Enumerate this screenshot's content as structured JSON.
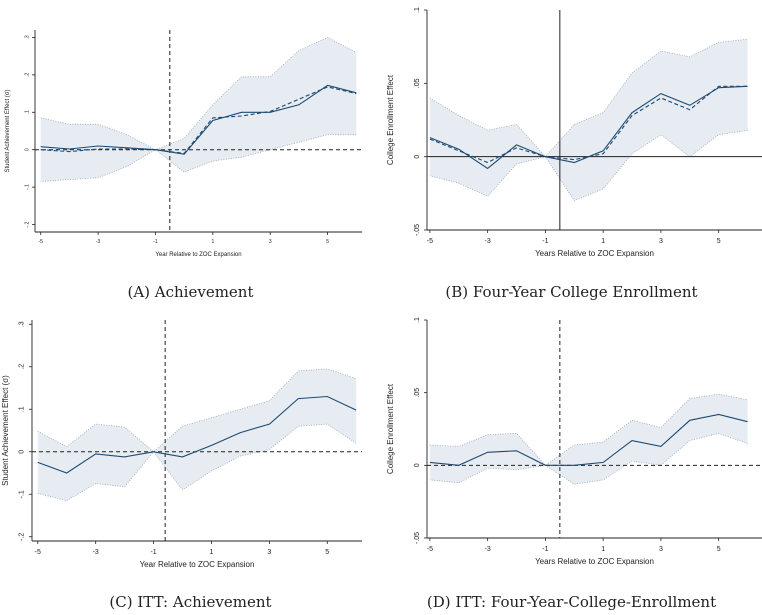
{
  "chart_data": [
    {
      "type": "line",
      "caption": "(A)  Achievement",
      "xlabel": "Year Relative to ZOC Expansion",
      "ylabel": "Student Achievement Effect (σ)",
      "xlim": [
        -5.2,
        6.2
      ],
      "ylim": [
        -0.22,
        0.32
      ],
      "xticks": [
        -5,
        -3,
        -1,
        1,
        3,
        5
      ],
      "yticks": [
        -0.2,
        -0.1,
        0,
        0.1,
        0.2,
        0.3
      ],
      "ytick_labels": [
        "-.2",
        "-.1",
        "0",
        ".1",
        ".2",
        ".3"
      ],
      "tick_font": 5,
      "label_font": 6,
      "x": [
        -5,
        -4,
        -3,
        -2,
        -1,
        0,
        1,
        2,
        3,
        4,
        5,
        6
      ],
      "series": [
        {
          "style": "solid",
          "values": [
            0.008,
            0.002,
            0.01,
            0.005,
            0.0,
            -0.012,
            0.078,
            0.1,
            0.1,
            0.12,
            0.172,
            0.152
          ]
        },
        {
          "style": "dashed",
          "values": [
            0.0,
            -0.005,
            0.002,
            0.002,
            0.0,
            -0.01,
            0.085,
            0.09,
            0.102,
            0.135,
            0.168,
            0.15
          ]
        }
      ],
      "band_lower": [
        -0.085,
        -0.08,
        -0.075,
        -0.045,
        0.0,
        -0.06,
        -0.03,
        -0.02,
        0.0,
        0.02,
        0.04,
        0.04
      ],
      "band_upper": [
        0.085,
        0.068,
        0.068,
        0.04,
        0.0,
        0.03,
        0.12,
        0.195,
        0.195,
        0.265,
        0.3,
        0.26
      ],
      "vline": {
        "x": -0.5,
        "style": "dashed"
      },
      "hline": {
        "y": 0,
        "style": "dashed"
      }
    },
    {
      "type": "line",
      "caption": "(B)  Four-Year College Enrollment",
      "xlabel": "Years Relative to ZOC Expansion",
      "ylabel": "College Enrollment Effect",
      "xlim": [
        -5.1,
        6.5
      ],
      "ylim": [
        -0.05,
        0.1
      ],
      "xticks": [
        -5,
        -3,
        -1,
        1,
        3,
        5
      ],
      "yticks": [
        -0.05,
        0,
        0.05,
        0.1
      ],
      "ytick_labels": [
        "-.05",
        "0",
        ".05",
        ".1"
      ],
      "tick_font": 7,
      "label_font": 8,
      "x": [
        -5,
        -4,
        -3,
        -2,
        -1,
        0,
        1,
        2,
        3,
        4,
        5,
        6
      ],
      "series": [
        {
          "style": "solid",
          "values": [
            0.013,
            0.005,
            -0.008,
            0.008,
            0.0,
            -0.004,
            0.004,
            0.03,
            0.043,
            0.035,
            0.047,
            0.048
          ]
        },
        {
          "style": "dashed",
          "values": [
            0.012,
            0.004,
            -0.004,
            0.006,
            0.0,
            -0.002,
            0.002,
            0.028,
            0.04,
            0.032,
            0.048,
            0.048
          ]
        }
      ],
      "band_lower": [
        -0.013,
        -0.018,
        -0.027,
        -0.005,
        0.0,
        -0.03,
        -0.022,
        0.002,
        0.015,
        0.0,
        0.015,
        0.018
      ],
      "band_upper": [
        0.04,
        0.028,
        0.018,
        0.022,
        0.0,
        0.022,
        0.03,
        0.057,
        0.072,
        0.068,
        0.078,
        0.08
      ],
      "vline": {
        "x": -0.5,
        "style": "solid",
        "ymin": -0.05,
        "ymax": 0.1
      },
      "hline": {
        "y": 0,
        "style": "solid"
      }
    },
    {
      "type": "line",
      "caption": "(C)  ITT: Achievement",
      "xlabel": "Year Relative to ZOC Expansion",
      "ylabel": "Student Achievement Effect (σ)",
      "xlim": [
        -5.2,
        6.2
      ],
      "ylim": [
        -0.21,
        0.31
      ],
      "xticks": [
        -5,
        -3,
        -1,
        1,
        3,
        5
      ],
      "yticks": [
        -0.2,
        -0.1,
        0,
        0.1,
        0.2,
        0.3
      ],
      "ytick_labels": [
        "-.2",
        "-.1",
        "0",
        ".1",
        ".2",
        ".3"
      ],
      "tick_font": 7,
      "label_font": 8,
      "x": [
        -5,
        -4,
        -3,
        -2,
        -1,
        0,
        1,
        2,
        3,
        4,
        5,
        6
      ],
      "series": [
        {
          "style": "solid",
          "values": [
            -0.025,
            -0.05,
            -0.005,
            -0.012,
            0.0,
            -0.012,
            0.015,
            0.045,
            0.065,
            0.125,
            0.13,
            0.098
          ]
        }
      ],
      "band_lower": [
        -0.098,
        -0.115,
        -0.075,
        -0.082,
        0.0,
        -0.09,
        -0.045,
        -0.01,
        0.005,
        0.06,
        0.065,
        0.02
      ],
      "band_upper": [
        0.048,
        0.012,
        0.065,
        0.058,
        0.0,
        0.06,
        0.08,
        0.1,
        0.12,
        0.19,
        0.195,
        0.172
      ],
      "vline": {
        "x": -0.6,
        "style": "dashed"
      },
      "hline": {
        "y": 0,
        "style": "dashed"
      }
    },
    {
      "type": "line",
      "caption": "(D)  ITT: Four-Year-College-Enrollment",
      "xlabel": "Years Relative to ZOC Expansion",
      "ylabel": "College Enrollment Effect",
      "xlim": [
        -5.1,
        6.5
      ],
      "ylim": [
        -0.05,
        0.1
      ],
      "xticks": [
        -5,
        -3,
        -1,
        1,
        3,
        5
      ],
      "yticks": [
        -0.05,
        0,
        0.05,
        0.1
      ],
      "ytick_labels": [
        "-.05",
        "0",
        ".05",
        ".1"
      ],
      "tick_font": 7,
      "label_font": 8,
      "x": [
        -5,
        -4,
        -3,
        -2,
        -1,
        0,
        1,
        2,
        3,
        4,
        5,
        6
      ],
      "series": [
        {
          "style": "solid",
          "values": [
            0.002,
            0.0,
            0.009,
            0.01,
            0.0,
            0.0,
            0.002,
            0.017,
            0.013,
            0.031,
            0.035,
            0.03
          ]
        }
      ],
      "band_lower": [
        -0.01,
        -0.012,
        -0.002,
        -0.003,
        0.0,
        -0.013,
        -0.01,
        0.003,
        0.0,
        0.017,
        0.022,
        0.015
      ],
      "band_upper": [
        0.014,
        0.013,
        0.021,
        0.022,
        0.0,
        0.014,
        0.016,
        0.031,
        0.026,
        0.046,
        0.049,
        0.045
      ],
      "vline": {
        "x": -0.5,
        "style": "dashed"
      },
      "hline": {
        "y": 0,
        "style": "dashed"
      }
    }
  ],
  "colors": {
    "line": "#1c4a72",
    "band": "#e6ecf1",
    "band_edge": "#9aa6b2",
    "axis": "#222222"
  }
}
